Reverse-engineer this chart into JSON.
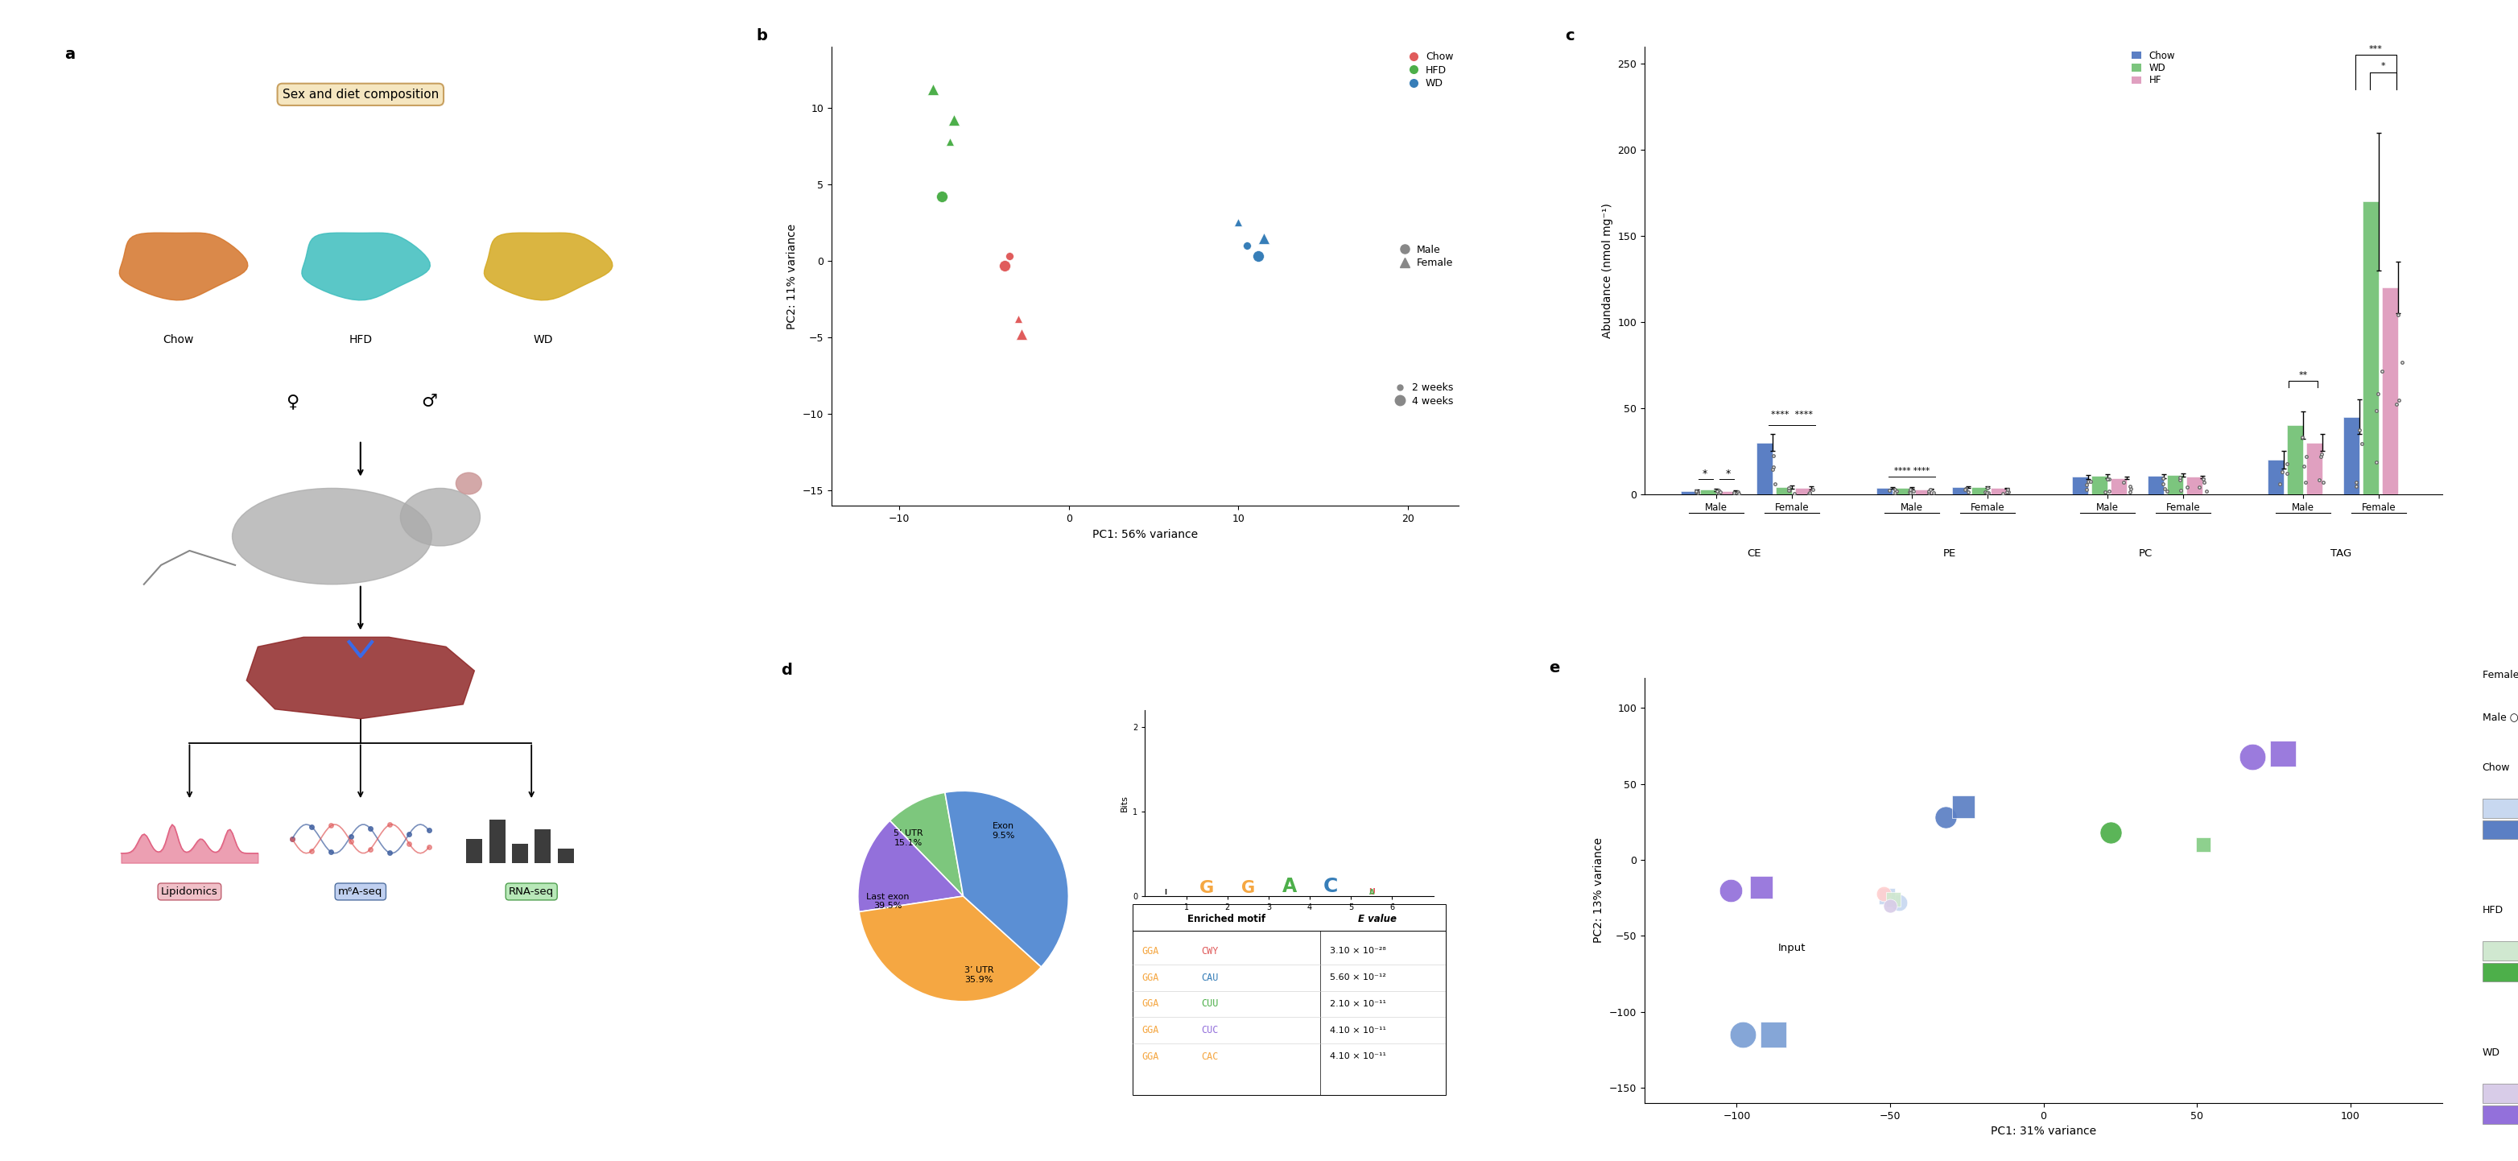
{
  "panel_label_fontsize": 14,
  "background_color": "#ffffff",
  "pca_b": {
    "xlabel": "PC1: 56% variance",
    "ylabel": "PC2: 11% variance",
    "xlim": [
      -14,
      23
    ],
    "ylim": [
      -16,
      14
    ],
    "xticks": [
      -10,
      0,
      10,
      20
    ],
    "yticks": [
      -15,
      -10,
      -5,
      0,
      5,
      10
    ],
    "chow_color": "#e05c5c",
    "hfd_color": "#4daf4a",
    "wd_color": "#377eb8",
    "points": [
      [
        -3.5,
        0.3,
        "#e05c5c",
        "o",
        50
      ],
      [
        -3.8,
        -0.3,
        "#e05c5c",
        "o",
        100
      ],
      [
        -3.0,
        -3.8,
        "#e05c5c",
        "^",
        50
      ],
      [
        -2.8,
        -4.8,
        "#e05c5c",
        "^",
        100
      ],
      [
        -7.5,
        4.2,
        "#4daf4a",
        "o",
        100
      ],
      [
        -7.0,
        7.8,
        "#4daf4a",
        "^",
        50
      ],
      [
        -6.8,
        9.2,
        "#4daf4a",
        "^",
        100
      ],
      [
        -8.0,
        11.2,
        "#4daf4a",
        "^",
        100
      ],
      [
        10.5,
        1.0,
        "#377eb8",
        "o",
        50
      ],
      [
        11.2,
        0.3,
        "#377eb8",
        "o",
        100
      ],
      [
        10.0,
        2.5,
        "#377eb8",
        "^",
        50
      ],
      [
        11.5,
        1.5,
        "#377eb8",
        "^",
        100
      ]
    ],
    "legend_diet": [
      {
        "label": "Chow",
        "color": "#e05c5c"
      },
      {
        "label": "HFD",
        "color": "#4daf4a"
      },
      {
        "label": "WD",
        "color": "#377eb8"
      }
    ]
  },
  "bar_c": {
    "ylabel": "Abundance (nmol mg⁻¹)",
    "ylim": [
      0,
      260
    ],
    "yticks": [
      0,
      50,
      100,
      150,
      200,
      250
    ],
    "groups": [
      "CE",
      "PE",
      "PC",
      "TAG"
    ],
    "subgroups": [
      "Male",
      "Female"
    ],
    "diets": [
      "Chow",
      "WD",
      "HF"
    ],
    "diet_colors": [
      "#5b7fc4",
      "#7cc57e",
      "#e0a0c0"
    ],
    "data": {
      "CE": {
        "Male": [
          2.0,
          2.5,
          1.8
        ],
        "Female": [
          30.0,
          4.0,
          3.5
        ]
      },
      "PE": {
        "Male": [
          3.5,
          3.8,
          2.8
        ],
        "Female": [
          4.0,
          4.2,
          3.5
        ]
      },
      "PC": {
        "Male": [
          10.0,
          10.5,
          9.5
        ],
        "Female": [
          10.5,
          11.0,
          10.0
        ]
      },
      "TAG": {
        "Male": [
          20.0,
          40.0,
          30.0
        ],
        "Female": [
          45.0,
          170.0,
          120.0
        ]
      }
    },
    "errors": {
      "CE": {
        "Male": [
          0.5,
          0.5,
          0.5
        ],
        "Female": [
          5.0,
          1.0,
          1.0
        ]
      },
      "PE": {
        "Male": [
          0.5,
          0.5,
          0.3
        ],
        "Female": [
          0.5,
          0.5,
          0.3
        ]
      },
      "PC": {
        "Male": [
          1.0,
          1.0,
          0.8
        ],
        "Female": [
          1.0,
          1.0,
          0.8
        ]
      },
      "TAG": {
        "Male": [
          5.0,
          8.0,
          5.0
        ],
        "Female": [
          10.0,
          40.0,
          15.0
        ]
      }
    }
  },
  "pie_d": {
    "sizes": [
      9.5,
      15.1,
      35.9,
      39.5
    ],
    "colors": [
      "#7dc77d",
      "#9370db",
      "#f5a742",
      "#5b8fd4"
    ],
    "labels": [
      "Exon\n9.5%",
      "5’ UTR\n15.1%",
      "3’ UTR\n35.9%",
      "Last exon\n39.5%"
    ],
    "startangle": 100
  },
  "motif_rows": [
    [
      "GGACWY",
      "3.10 × 10⁻²⁸"
    ],
    [
      "GGACAU",
      "5.60 × 10⁻¹²"
    ],
    [
      "GGACUU",
      "2.10 × 10⁻¹¹"
    ],
    [
      "GGACUC",
      "4.10 × 10⁻¹¹"
    ],
    [
      "GGACAC",
      "4.10 × 10⁻¹¹"
    ]
  ],
  "motif_suffix_colors": [
    "#e05c5c",
    "#377eb8",
    "#4daf4a",
    "#9370db",
    "#f5a742"
  ],
  "pca_e": {
    "xlabel": "PC1: 31% variance",
    "ylabel": "PC2: 13% variance",
    "xlim": [
      -130,
      130
    ],
    "ylim": [
      -160,
      120
    ],
    "xticks": [
      -100,
      -50,
      0,
      50,
      100
    ],
    "yticks": [
      -150,
      -100,
      -50,
      0,
      50,
      100
    ]
  }
}
